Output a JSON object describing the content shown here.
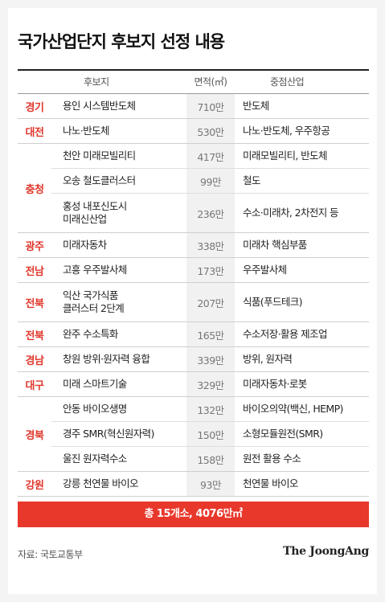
{
  "title": "국가산업단지 후보지 선정 내용",
  "headers": {
    "site": "후보지",
    "area": "면적(㎡)",
    "industry": "중점산업"
  },
  "groups": [
    {
      "region": "경기",
      "rows": [
        {
          "site": [
            "용인 시스템반도체"
          ],
          "area": "710만",
          "industry": "반도체"
        }
      ]
    },
    {
      "region": "대전",
      "rows": [
        {
          "site": [
            "나노·반도체"
          ],
          "area": "530만",
          "industry": "나노·반도체, 우주항공"
        }
      ]
    },
    {
      "region": "충청",
      "rows": [
        {
          "site": [
            "천안 미래모빌리티"
          ],
          "area": "417만",
          "industry": "미래모빌리티, 반도체"
        },
        {
          "site": [
            "오송 철도클러스터"
          ],
          "area": "99만",
          "industry": "철도"
        },
        {
          "site": [
            "홍성 내포신도시",
            "미래신산업"
          ],
          "area": "236만",
          "industry": "수소·미래차, 2차전지 등"
        }
      ]
    },
    {
      "region": "광주",
      "rows": [
        {
          "site": [
            "미래자동차"
          ],
          "area": "338만",
          "industry": "미래차 핵심부품"
        }
      ]
    },
    {
      "region": "전남",
      "rows": [
        {
          "site": [
            "고흥 우주발사체"
          ],
          "area": "173만",
          "industry": "우주발사체"
        }
      ]
    },
    {
      "region": "전북",
      "rows": [
        {
          "site": [
            "익산 국가식품",
            "클러스터 2단계"
          ],
          "area": "207만",
          "industry": "식품(푸드테크)"
        }
      ]
    },
    {
      "region": "전북",
      "rows": [
        {
          "site": [
            "완주 수소특화"
          ],
          "area": "165만",
          "industry": "수소저장·활용 제조업"
        }
      ]
    },
    {
      "region": "경남",
      "rows": [
        {
          "site": [
            "창원 방위·원자력 융합"
          ],
          "area": "339만",
          "industry": "방위, 원자력"
        }
      ]
    },
    {
      "region": "대구",
      "rows": [
        {
          "site": [
            "미래 스마트기술"
          ],
          "area": "329만",
          "industry": "미래자동차·로봇"
        }
      ]
    },
    {
      "region": "경북",
      "rows": [
        {
          "site": [
            "안동 바이오생명"
          ],
          "area": "132만",
          "industry": "바이오의약(백신, HEMP)"
        },
        {
          "site": [
            "경주 SMR(혁신원자력)"
          ],
          "area": "150만",
          "industry": "소형모듈원전(SMR)"
        },
        {
          "site": [
            "울진 원자력수소"
          ],
          "area": "158만",
          "industry": "원전 활용 수소"
        }
      ]
    },
    {
      "region": "강원",
      "rows": [
        {
          "site": [
            "강릉 천연물 바이오"
          ],
          "area": "93만",
          "industry": "천연물 바이오"
        }
      ]
    }
  ],
  "total": "총 15개소, 4076만㎡",
  "source": "자료: 국토교통부",
  "logo": "The JoongAng",
  "colors": {
    "accent": "#e8372b",
    "region_text": "#e0372c"
  }
}
